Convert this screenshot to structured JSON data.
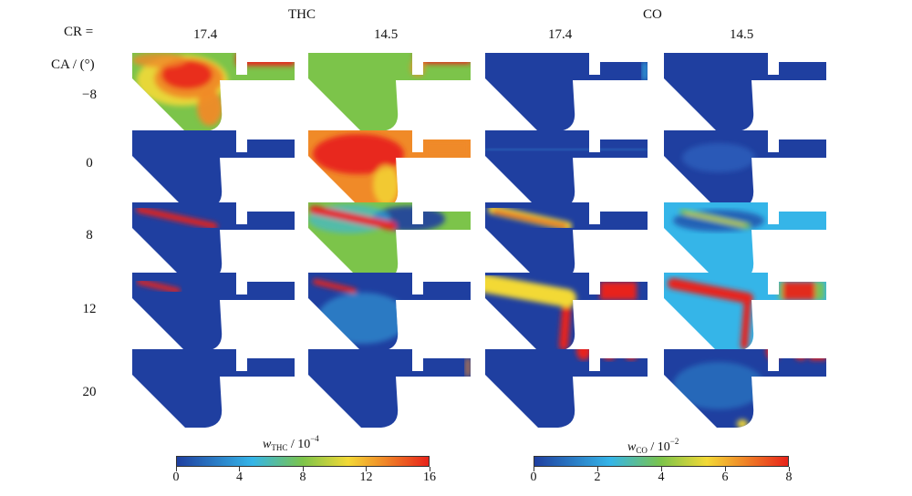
{
  "header": {
    "group_thc": "THC",
    "group_co": "CO",
    "cr_label": "CR =",
    "ca_label": "CA / (°)",
    "cr_values": [
      "17.4",
      "14.5",
      "17.4",
      "14.5"
    ]
  },
  "rows": [
    "−8",
    "0",
    "8",
    "12",
    "20"
  ],
  "colorbars": {
    "thc": {
      "symbol": "w",
      "sub": "THC",
      "unit": " / 10",
      "sup": "−4",
      "ticks": [
        "0",
        "4",
        "8",
        "12",
        "16"
      ]
    },
    "co": {
      "symbol": "w",
      "sub": "CO",
      "unit": " / 10",
      "sup": "−2",
      "ticks": [
        "0",
        "2",
        "4",
        "6",
        "8"
      ]
    }
  },
  "colors": {
    "low": "#1f3fa0",
    "cyan": "#35b5e8",
    "green": "#7cc44a",
    "yellow": "#f3d936",
    "orange": "#f08a28",
    "high": "#e8231a"
  }
}
